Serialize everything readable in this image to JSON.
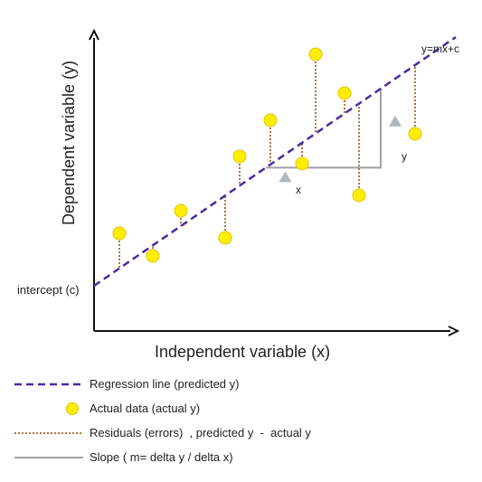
{
  "chart_data": {
    "type": "scatter",
    "title": "",
    "xlabel": "Independent variable (x)",
    "ylabel": "Dependent variable (y)",
    "xlim": [
      0,
      400
    ],
    "ylim": [
      0,
      330
    ],
    "grid": false,
    "legend_position": "bottom",
    "regression_line": {
      "label": "y=mx+c",
      "intercept": 50,
      "slope": 0.6875,
      "color": "#4b2a9e"
    },
    "intercept_label": "intercept (c)",
    "points": [
      {
        "x": 28,
        "y": 108
      },
      {
        "x": 65,
        "y": 83
      },
      {
        "x": 96,
        "y": 133
      },
      {
        "x": 145,
        "y": 103
      },
      {
        "x": 161,
        "y": 193
      },
      {
        "x": 195,
        "y": 233
      },
      {
        "x": 230,
        "y": 185
      },
      {
        "x": 245,
        "y": 306
      },
      {
        "x": 277,
        "y": 263
      },
      {
        "x": 293,
        "y": 150
      },
      {
        "x": 355,
        "y": 218
      }
    ],
    "slope_triangle": {
      "x1": 190,
      "x2": 317,
      "delta_x_label": "x",
      "delta_y_label": "y",
      "color": "#a0a0a0"
    },
    "colors": {
      "point_fill": "#ffee00",
      "point_stroke": "#e0c400",
      "residual": "#b8743c",
      "axis": "#111111",
      "delta_marker": "#b0b7c0"
    },
    "legend": [
      {
        "kind": "dashed-line",
        "label": "Regression line (predicted y)"
      },
      {
        "kind": "dot",
        "label": "Actual data (actual y)"
      },
      {
        "kind": "dotted-line",
        "label": "Residuals (errors)  , predicted y  -  actual y"
      },
      {
        "kind": "solid-line",
        "label": "Slope ( m= delta y / delta x)"
      }
    ]
  }
}
